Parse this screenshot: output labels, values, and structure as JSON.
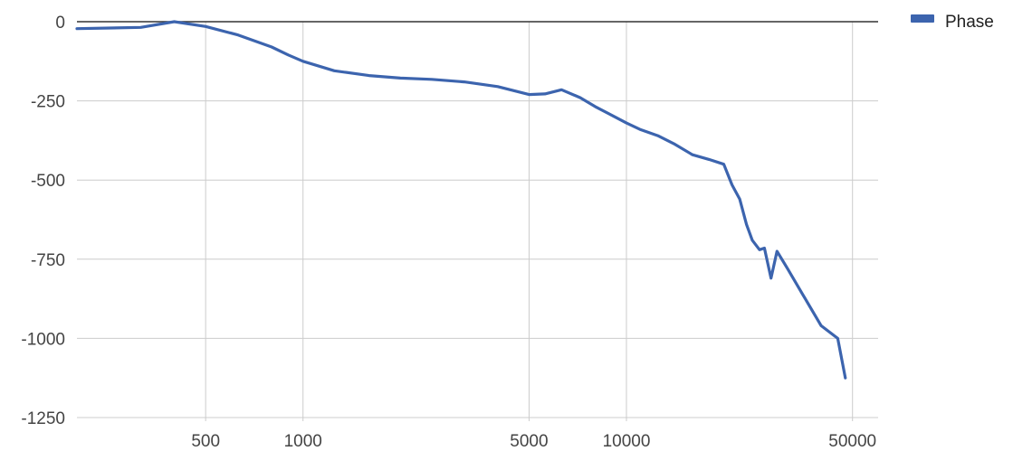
{
  "chart_data": {
    "type": "line",
    "title": "",
    "xlabel": "",
    "ylabel": "",
    "x_scale": "log",
    "xlim": [
      200,
      60000
    ],
    "ylim": [
      -1250,
      0
    ],
    "grid": true,
    "legend_position": "right",
    "x_ticks": [
      500,
      1000,
      5000,
      10000,
      50000
    ],
    "x_tick_labels": [
      "500",
      "1000",
      "5000",
      "10000",
      "50000"
    ],
    "y_ticks": [
      0,
      -250,
      -500,
      -750,
      -1000,
      -1250
    ],
    "y_tick_labels": [
      "0",
      "-250",
      "-500",
      "-750",
      "-1000",
      "-1250"
    ],
    "series": [
      {
        "name": "Phase",
        "color": "#3c64ae",
        "x": [
          200,
          315,
          400,
          500,
          630,
          800,
          900,
          1000,
          1250,
          1600,
          2000,
          2500,
          3150,
          4000,
          5000,
          5600,
          6300,
          7200,
          8000,
          9000,
          10000,
          11000,
          12500,
          14000,
          16000,
          18000,
          20000,
          21200,
          22400,
          23500,
          24500,
          25800,
          26700,
          28000,
          29200,
          31500,
          35000,
          40000,
          45000,
          47500
        ],
        "y": [
          -22,
          -18,
          0,
          -15,
          -42,
          -80,
          -105,
          -125,
          -155,
          -170,
          -178,
          -182,
          -190,
          -205,
          -230,
          -228,
          -215,
          -240,
          -268,
          -295,
          -320,
          -340,
          -360,
          -385,
          -420,
          -435,
          -450,
          -515,
          -560,
          -640,
          -690,
          -720,
          -715,
          -810,
          -725,
          -780,
          -860,
          -960,
          -1000,
          -1125
        ]
      }
    ]
  }
}
